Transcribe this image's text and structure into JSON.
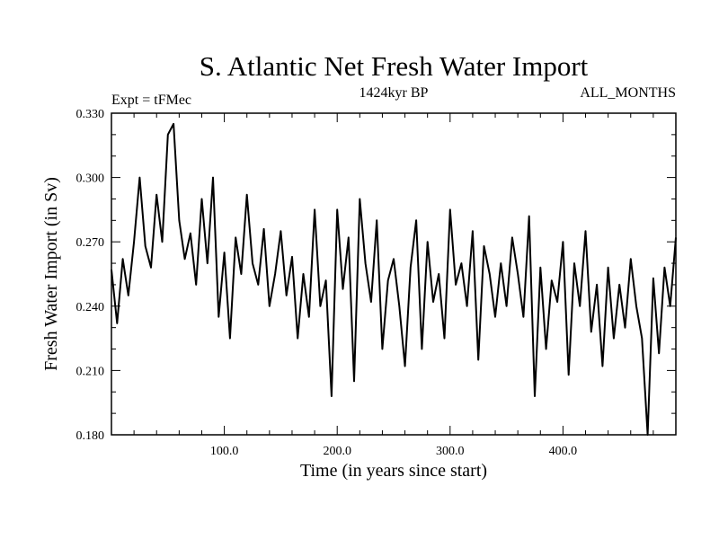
{
  "chart_data": {
    "type": "line",
    "title": "S. Atlantic Net Fresh Water Import",
    "subtitle_left": "Expt = tFMec",
    "subtitle_center": "1424kyr BP",
    "subtitle_right": "ALL_MONTHS",
    "xlabel": "Time (in years since start)",
    "ylabel": "Fresh Water Import (in Sv)",
    "xlim": [
      0,
      500
    ],
    "ylim": [
      0.18,
      0.33
    ],
    "x_ticks": [
      100,
      200,
      300,
      400
    ],
    "x_tick_labels": [
      "100.0",
      "200.0",
      "300.0",
      "400.0"
    ],
    "y_ticks": [
      0.18,
      0.21,
      0.24,
      0.27,
      0.3,
      0.33
    ],
    "y_tick_labels": [
      "0.180",
      "0.210",
      "0.240",
      "0.270",
      "0.300",
      "0.330"
    ],
    "grid": false,
    "series": [
      {
        "name": "Fresh Water Import",
        "x": [
          0,
          5,
          10,
          15,
          20,
          25,
          30,
          35,
          40,
          45,
          50,
          55,
          60,
          65,
          70,
          75,
          80,
          85,
          90,
          95,
          100,
          105,
          110,
          115,
          120,
          125,
          130,
          135,
          140,
          145,
          150,
          155,
          160,
          165,
          170,
          175,
          180,
          185,
          190,
          195,
          200,
          205,
          210,
          215,
          220,
          225,
          230,
          235,
          240,
          245,
          250,
          255,
          260,
          265,
          270,
          275,
          280,
          285,
          290,
          295,
          300,
          305,
          310,
          315,
          320,
          325,
          330,
          335,
          340,
          345,
          350,
          355,
          360,
          365,
          370,
          375,
          380,
          385,
          390,
          395,
          400,
          405,
          410,
          415,
          420,
          425,
          430,
          435,
          440,
          445,
          450,
          455,
          460,
          465,
          470,
          475,
          480,
          485,
          490,
          495,
          500
        ],
        "values": [
          0.257,
          0.232,
          0.262,
          0.245,
          0.27,
          0.3,
          0.268,
          0.258,
          0.292,
          0.27,
          0.32,
          0.325,
          0.28,
          0.262,
          0.274,
          0.25,
          0.29,
          0.26,
          0.3,
          0.235,
          0.265,
          0.225,
          0.272,
          0.255,
          0.292,
          0.26,
          0.25,
          0.276,
          0.24,
          0.255,
          0.275,
          0.245,
          0.263,
          0.225,
          0.255,
          0.235,
          0.285,
          0.24,
          0.252,
          0.198,
          0.285,
          0.248,
          0.272,
          0.205,
          0.29,
          0.26,
          0.242,
          0.28,
          0.22,
          0.252,
          0.262,
          0.24,
          0.212,
          0.258,
          0.28,
          0.22,
          0.27,
          0.242,
          0.255,
          0.225,
          0.285,
          0.25,
          0.26,
          0.24,
          0.275,
          0.215,
          0.268,
          0.255,
          0.235,
          0.26,
          0.24,
          0.272,
          0.255,
          0.235,
          0.282,
          0.198,
          0.258,
          0.22,
          0.252,
          0.242,
          0.27,
          0.208,
          0.26,
          0.24,
          0.275,
          0.228,
          0.25,
          0.212,
          0.258,
          0.225,
          0.25,
          0.23,
          0.262,
          0.24,
          0.225,
          0.18,
          0.253,
          0.218,
          0.258,
          0.24,
          0.272
        ]
      }
    ]
  }
}
